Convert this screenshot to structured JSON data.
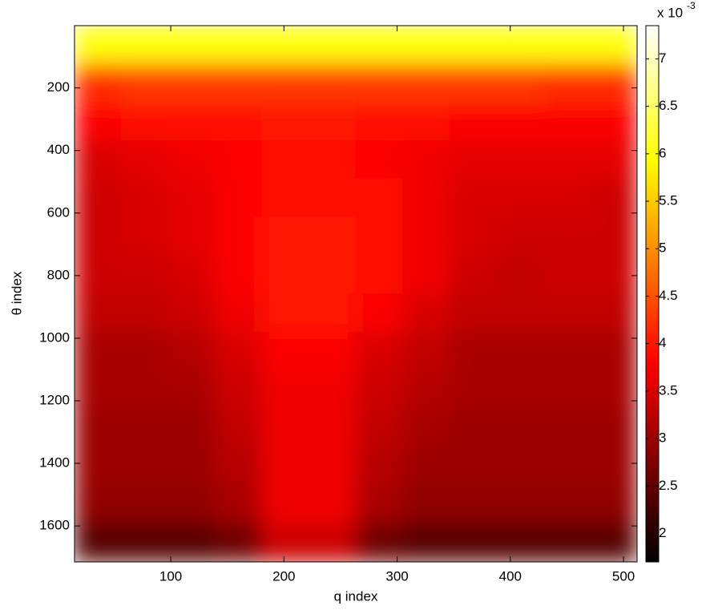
{
  "chart_data": {
    "type": "heatmap",
    "xlabel": "q index",
    "ylabel": "θ index",
    "colorbar_label": "x 10",
    "colorbar_exponent": "-3",
    "colormap": "hot",
    "xlim": [
      15,
      512
    ],
    "ylim": [
      1715,
      1
    ],
    "clim": [
      1.7,
      7.35
    ],
    "xticks": [
      100,
      200,
      300,
      400,
      500
    ],
    "yticks": [
      200,
      400,
      600,
      800,
      1000,
      1200,
      1400,
      1600
    ],
    "cticks": [
      2,
      2.5,
      3,
      3.5,
      4,
      4.5,
      5,
      5.5,
      6,
      6.5,
      7
    ],
    "z": [
      [
        6.0,
        6.0,
        6.0,
        6.0,
        6.0,
        6.0,
        6.0,
        6.0,
        6.0,
        6.0,
        6.0,
        6.0
      ],
      [
        4.2,
        4.3,
        4.3,
        4.3,
        4.3,
        4.3,
        4.3,
        4.3,
        4.3,
        4.3,
        4.2,
        4.2
      ],
      [
        3.8,
        3.9,
        3.9,
        3.9,
        4.0,
        4.0,
        3.9,
        3.9,
        3.8,
        3.8,
        3.8,
        3.8
      ],
      [
        3.5,
        3.6,
        3.7,
        3.8,
        3.9,
        3.9,
        3.8,
        3.7,
        3.6,
        3.6,
        3.6,
        3.6
      ],
      [
        3.4,
        3.5,
        3.6,
        3.8,
        3.9,
        3.9,
        3.9,
        3.7,
        3.5,
        3.5,
        3.5,
        3.4
      ],
      [
        3.4,
        3.5,
        3.6,
        3.8,
        4.0,
        4.0,
        3.9,
        3.7,
        3.5,
        3.4,
        3.4,
        3.4
      ],
      [
        3.4,
        3.4,
        3.5,
        3.8,
        4.0,
        4.0,
        3.9,
        3.7,
        3.4,
        3.3,
        3.4,
        3.4
      ],
      [
        3.3,
        3.3,
        3.4,
        3.7,
        4.0,
        4.0,
        3.8,
        3.5,
        3.3,
        3.3,
        3.3,
        3.3
      ],
      [
        3.1,
        3.1,
        3.2,
        3.5,
        3.8,
        3.8,
        3.5,
        3.3,
        3.1,
        3.1,
        3.1,
        3.1
      ],
      [
        3.1,
        3.1,
        3.1,
        3.4,
        3.7,
        3.7,
        3.4,
        3.2,
        3.1,
        3.1,
        3.1,
        3.1
      ],
      [
        3.0,
        3.0,
        3.0,
        3.3,
        3.7,
        3.7,
        3.3,
        3.1,
        3.0,
        3.0,
        3.0,
        3.0
      ],
      [
        3.0,
        3.0,
        3.0,
        3.2,
        3.7,
        3.7,
        3.2,
        3.0,
        3.0,
        3.0,
        3.0,
        3.0
      ],
      [
        2.9,
        2.9,
        2.9,
        3.1,
        3.7,
        3.7,
        3.1,
        2.9,
        2.9,
        2.9,
        2.9,
        2.9
      ],
      [
        2.4,
        2.4,
        2.4,
        2.6,
        3.4,
        3.4,
        2.6,
        2.4,
        2.4,
        2.4,
        2.4,
        2.4
      ]
    ]
  }
}
